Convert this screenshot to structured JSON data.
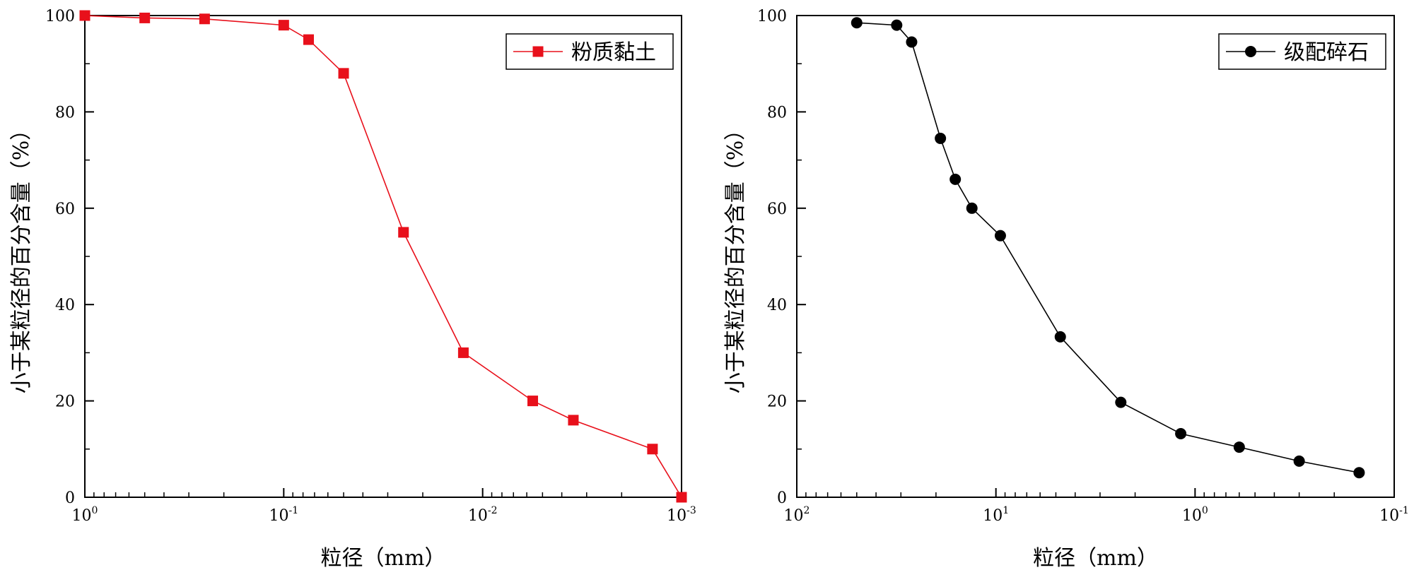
{
  "chart_data": [
    {
      "type": "line",
      "xscale": "log",
      "x_reversed": true,
      "xlim": [
        1,
        0.001
      ],
      "ylim": [
        0,
        100
      ],
      "xlabel": "粒径（mm）",
      "ylabel": "小于某粒径的百分含量（%）",
      "x_ticks": [
        {
          "value": 1,
          "base": "10",
          "exp": "0"
        },
        {
          "value": 0.1,
          "base": "10",
          "exp": "-1"
        },
        {
          "value": 0.01,
          "base": "10",
          "exp": "-2"
        },
        {
          "value": 0.001,
          "base": "10",
          "exp": "-3"
        }
      ],
      "y_ticks": [
        "0",
        "20",
        "40",
        "60",
        "80",
        "100"
      ],
      "legend": {
        "position": "top-right",
        "label": "粉质黏土"
      },
      "series": [
        {
          "name": "粉质黏土",
          "color": "#e8101b",
          "marker": "square",
          "x": [
            1,
            0.5,
            0.25,
            0.1,
            0.075,
            0.05,
            0.025,
            0.0125,
            0.0056,
            0.0035,
            0.0014,
            0.001
          ],
          "y": [
            100,
            99.5,
            99.3,
            98,
            95,
            88,
            55,
            30,
            20,
            16,
            10,
            0
          ]
        }
      ]
    },
    {
      "type": "line",
      "xscale": "log",
      "x_reversed": true,
      "xlim": [
        100,
        0.1
      ],
      "ylim": [
        0,
        100
      ],
      "xlabel": "粒径（mm）",
      "ylabel": "小于某粒径的百分含量（%）",
      "x_ticks": [
        {
          "value": 100,
          "base": "10",
          "exp": "2"
        },
        {
          "value": 10,
          "base": "10",
          "exp": "1"
        },
        {
          "value": 1,
          "base": "10",
          "exp": "0"
        },
        {
          "value": 0.1,
          "base": "10",
          "exp": "-1"
        }
      ],
      "y_ticks": [
        "0",
        "20",
        "40",
        "60",
        "80",
        "100"
      ],
      "legend": {
        "position": "top-right",
        "label": "级配碎石"
      },
      "series": [
        {
          "name": "级配碎石",
          "color": "#000000",
          "marker": "circle",
          "x": [
            50,
            31.5,
            26.5,
            19,
            16,
            13.2,
            9.5,
            4.75,
            2.36,
            1.18,
            0.6,
            0.3,
            0.15
          ],
          "y": [
            98.5,
            98,
            94.5,
            74.5,
            66,
            60,
            54.3,
            33.3,
            19.7,
            13.2,
            10.4,
            7.5,
            5.1
          ]
        }
      ]
    }
  ]
}
